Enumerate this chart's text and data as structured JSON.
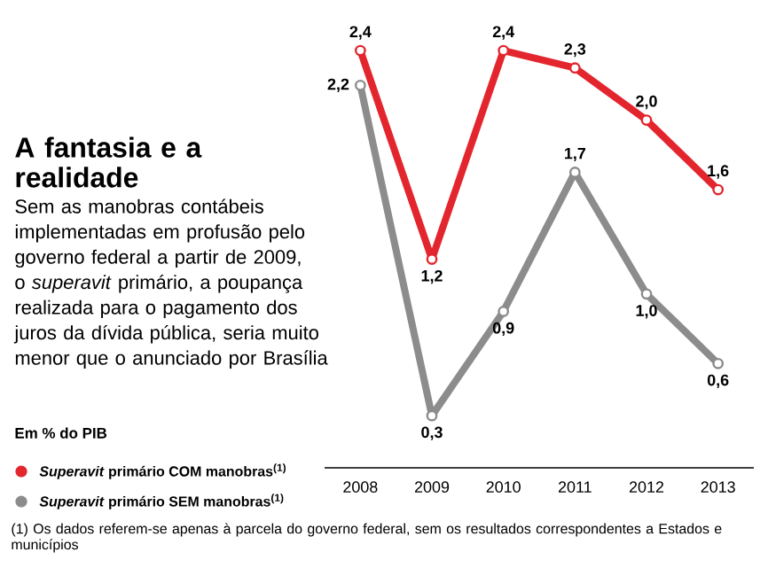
{
  "chart_data": {
    "type": "line",
    "title": "A fantasia e a realidade",
    "subtitle": "Sem as manobras contábeis implementadas em profusão pelo governo federal a partir de 2009, o *superavit* primário, a poupança realizada para o pagamento dos juros da dívida pública, seria muito menor que o anunciado por Brasília",
    "annotations": [
      "Em % do PIB",
      "(1) Os dados referem-se apenas à parcela do governo federal, sem os resultados correspondentes a Estados e municípios"
    ],
    "categories": [
      "2008",
      "2009",
      "2010",
      "2011",
      "2012",
      "2013"
    ],
    "series": [
      {
        "name": "*Superavit* primário COM manobras$^{(1)}$",
        "color": "#e3262e",
        "values": [
          2.4,
          1.2,
          2.4,
          2.3,
          2.0,
          1.6
        ],
        "value_labels": [
          "2,4",
          "1,2",
          "2,4",
          "2,3",
          "2,0",
          "1,6"
        ]
      },
      {
        "name": "*Superavit* primário SEM manobras$^{(1)}$",
        "color": "#8c8c8c",
        "values": [
          2.2,
          0.3,
          0.9,
          1.7,
          1.0,
          0.6
        ],
        "value_labels": [
          "2,2",
          "0,3",
          "0,9",
          "1,7",
          "1,0",
          "0,6"
        ]
      }
    ],
    "tick_labels": "x",
    "legend": "bottom left",
    "marker": "circle"
  }
}
